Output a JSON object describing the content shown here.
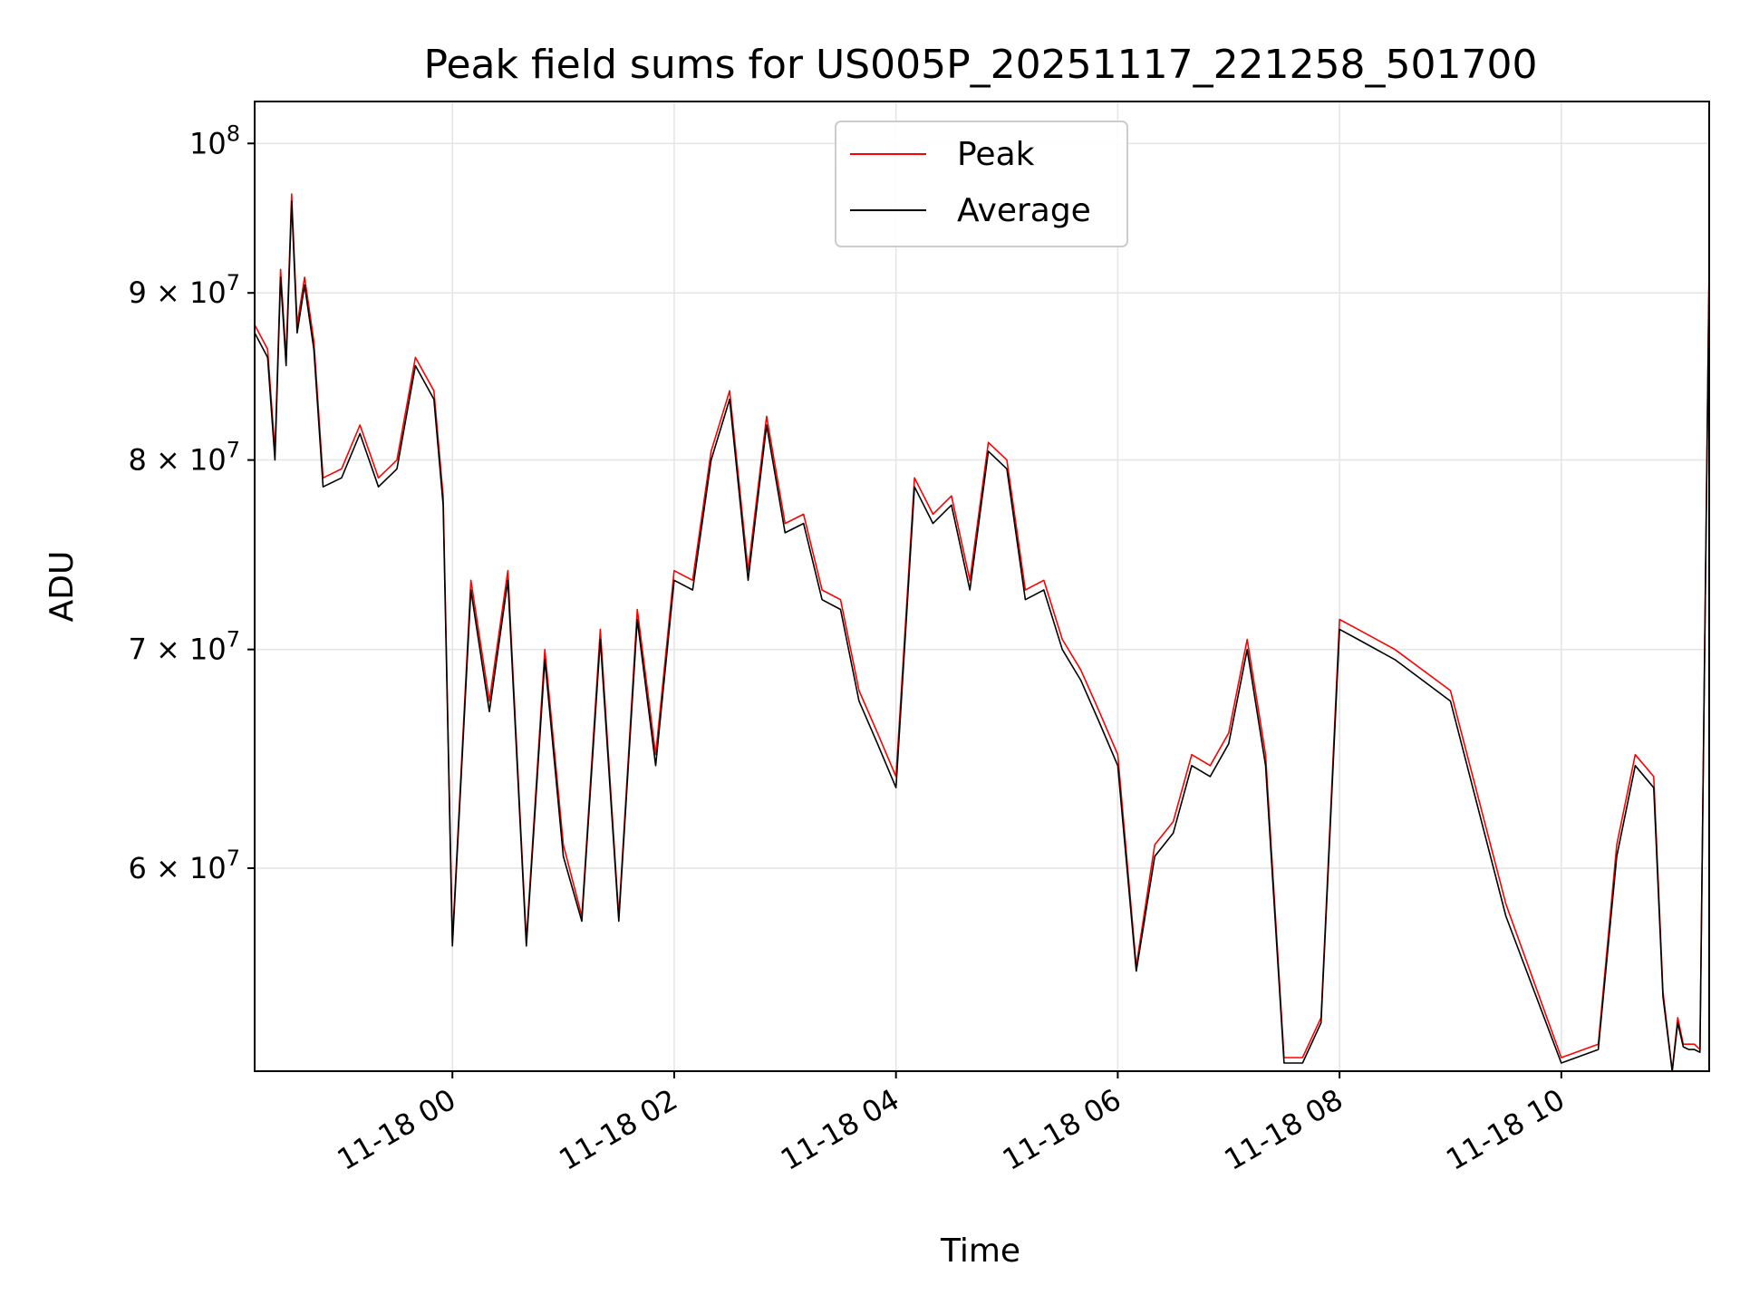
{
  "chart_data": {
    "type": "line",
    "title": "Peak field sums for US005P_20251117_221258_501700",
    "xlabel": "Time",
    "ylabel": "ADU",
    "xlim": [
      "2025-11-17 22:13",
      "2025-11-18 11:20"
    ],
    "ylim": [
      52000000,
      103000000
    ],
    "yscale": "log",
    "grid": true,
    "legend": "upper center",
    "x_ticks": [
      "11-18 00",
      "11-18 02",
      "11-18 04",
      "11-18 06",
      "11-18 08",
      "11-18 10"
    ],
    "y_ticks": [
      {
        "value": 60000000,
        "mantissa": "6",
        "exponent": "7"
      },
      {
        "value": 70000000,
        "mantissa": "7",
        "exponent": "7"
      },
      {
        "value": 80000000,
        "mantissa": "8",
        "exponent": "7"
      },
      {
        "value": 90000000,
        "mantissa": "9",
        "exponent": "7"
      },
      {
        "value": 100000000,
        "mantissa": "10",
        "exponent": "8"
      }
    ],
    "x": [
      "2025-11-17 22:13",
      "2025-11-17 22:20",
      "2025-11-17 22:24",
      "2025-11-17 22:27",
      "2025-11-17 22:30",
      "2025-11-17 22:33",
      "2025-11-17 22:36",
      "2025-11-17 22:40",
      "2025-11-17 22:45",
      "2025-11-17 22:50",
      "2025-11-17 23:00",
      "2025-11-17 23:10",
      "2025-11-17 23:20",
      "2025-11-17 23:30",
      "2025-11-17 23:40",
      "2025-11-17 23:50",
      "2025-11-17 23:55",
      "2025-11-18 00:00",
      "2025-11-18 00:10",
      "2025-11-18 00:20",
      "2025-11-18 00:30",
      "2025-11-18 00:40",
      "2025-11-18 00:50",
      "2025-11-18 01:00",
      "2025-11-18 01:10",
      "2025-11-18 01:20",
      "2025-11-18 01:30",
      "2025-11-18 01:40",
      "2025-11-18 01:50",
      "2025-11-18 02:00",
      "2025-11-18 02:10",
      "2025-11-18 02:20",
      "2025-11-18 02:30",
      "2025-11-18 02:40",
      "2025-11-18 02:50",
      "2025-11-18 03:00",
      "2025-11-18 03:10",
      "2025-11-18 03:20",
      "2025-11-18 03:30",
      "2025-11-18 03:40",
      "2025-11-18 03:50",
      "2025-11-18 04:00",
      "2025-11-18 04:10",
      "2025-11-18 04:20",
      "2025-11-18 04:30",
      "2025-11-18 04:40",
      "2025-11-18 04:50",
      "2025-11-18 05:00",
      "2025-11-18 05:10",
      "2025-11-18 05:20",
      "2025-11-18 05:30",
      "2025-11-18 05:40",
      "2025-11-18 05:50",
      "2025-11-18 06:00",
      "2025-11-18 06:10",
      "2025-11-18 06:20",
      "2025-11-18 06:30",
      "2025-11-18 06:40",
      "2025-11-18 06:50",
      "2025-11-18 07:00",
      "2025-11-18 07:10",
      "2025-11-18 07:20",
      "2025-11-18 07:30",
      "2025-11-18 07:40",
      "2025-11-18 07:50",
      "2025-11-18 08:00",
      "2025-11-18 08:10",
      "2025-11-18 08:30",
      "2025-11-18 09:00",
      "2025-11-18 09:30",
      "2025-11-18 10:00",
      "2025-11-18 10:20",
      "2025-11-18 10:30",
      "2025-11-18 10:40",
      "2025-11-18 10:50",
      "2025-11-18 10:55",
      "2025-11-18 11:00",
      "2025-11-18 11:03",
      "2025-11-18 11:06",
      "2025-11-18 11:09",
      "2025-11-18 11:12",
      "2025-11-18 11:15",
      "2025-11-18 11:20"
    ],
    "series": [
      {
        "name": "Peak",
        "color": "#ff0000",
        "values": [
          88000000,
          86500000,
          80500000,
          91500000,
          86000000,
          96500000,
          88000000,
          91000000,
          87000000,
          79000000,
          79500000,
          82000000,
          79000000,
          80000000,
          86000000,
          84000000,
          78000000,
          57000000,
          73500000,
          67500000,
          74000000,
          57000000,
          70000000,
          61000000,
          58000000,
          71000000,
          58000000,
          72000000,
          65000000,
          74000000,
          73500000,
          80500000,
          84000000,
          74000000,
          82500000,
          76500000,
          77000000,
          73000000,
          72500000,
          68000000,
          66000000,
          64000000,
          79000000,
          77000000,
          78000000,
          73500000,
          81000000,
          80000000,
          73000000,
          73500000,
          70500000,
          69000000,
          67000000,
          65000000,
          56000000,
          61000000,
          62000000,
          65000000,
          64500000,
          66000000,
          70500000,
          65000000,
          52500000,
          52500000,
          54000000,
          71500000,
          71000000,
          70000000,
          68000000,
          58500000,
          52500000,
          53000000,
          61000000,
          65000000,
          64000000,
          55000000,
          52000000,
          54000000,
          53000000,
          53000000,
          53000000,
          52800000,
          92000000
        ]
      },
      {
        "name": "Average",
        "color": "#000000",
        "values": [
          87500000,
          86000000,
          80000000,
          91000000,
          85500000,
          96000000,
          87500000,
          90500000,
          86500000,
          78500000,
          79000000,
          81500000,
          78500000,
          79500000,
          85500000,
          83500000,
          77500000,
          56800000,
          73000000,
          67000000,
          73500000,
          56800000,
          69500000,
          60500000,
          57800000,
          70500000,
          57800000,
          71500000,
          64500000,
          73500000,
          73000000,
          80000000,
          83500000,
          73500000,
          82000000,
          76000000,
          76500000,
          72500000,
          72000000,
          67500000,
          65500000,
          63500000,
          78500000,
          76500000,
          77500000,
          73000000,
          80500000,
          79500000,
          72500000,
          73000000,
          70000000,
          68500000,
          66500000,
          64500000,
          55800000,
          60500000,
          61500000,
          64500000,
          64000000,
          65500000,
          70000000,
          64500000,
          52300000,
          52300000,
          53800000,
          71000000,
          70500000,
          69500000,
          67500000,
          58000000,
          52300000,
          52800000,
          60500000,
          64500000,
          63500000,
          54800000,
          51900000,
          53800000,
          52900000,
          52800000,
          52800000,
          52700000,
          91500000
        ]
      }
    ]
  }
}
